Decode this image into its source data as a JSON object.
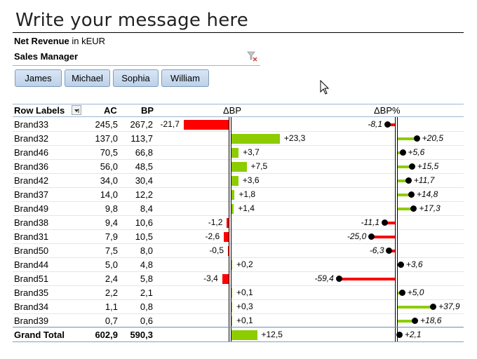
{
  "title": "Write your message here",
  "subtitle": {
    "bold": "Net Revenue",
    "rest": " in kEUR"
  },
  "slicer": {
    "header": "Sales Manager",
    "clear_filter_icon": "clear-filter-icon",
    "buttons": [
      "James",
      "Michael",
      "Sophia",
      "William"
    ]
  },
  "table": {
    "headers": {
      "row_labels": "Row Labels",
      "ac": "AC",
      "bp": "BP",
      "dbp": "ΔBP",
      "dbp_pct": "ΔBP%"
    },
    "rows": [
      {
        "label": "Brand33",
        "ac": "245,5",
        "bp": "267,2",
        "dbp": -21.7,
        "dbp_text": "-21,7",
        "pct": -8.1,
        "pct_text": "-8,1"
      },
      {
        "label": "Brand32",
        "ac": "137,0",
        "bp": "113,7",
        "dbp": 23.3,
        "dbp_text": "+23,3",
        "pct": 20.5,
        "pct_text": "+20,5"
      },
      {
        "label": "Brand46",
        "ac": "70,5",
        "bp": "66,8",
        "dbp": 3.7,
        "dbp_text": "+3,7",
        "pct": 5.6,
        "pct_text": "+5,6"
      },
      {
        "label": "Brand36",
        "ac": "56,0",
        "bp": "48,5",
        "dbp": 7.5,
        "dbp_text": "+7,5",
        "pct": 15.5,
        "pct_text": "+15,5"
      },
      {
        "label": "Brand42",
        "ac": "34,0",
        "bp": "30,4",
        "dbp": 3.6,
        "dbp_text": "+3,6",
        "pct": 11.7,
        "pct_text": "+11,7"
      },
      {
        "label": "Brand37",
        "ac": "14,0",
        "bp": "12,2",
        "dbp": 1.8,
        "dbp_text": "+1,8",
        "pct": 14.8,
        "pct_text": "+14,8"
      },
      {
        "label": "Brand49",
        "ac": "9,8",
        "bp": "8,4",
        "dbp": 1.4,
        "dbp_text": "+1,4",
        "pct": 17.3,
        "pct_text": "+17,3"
      },
      {
        "label": "Brand38",
        "ac": "9,4",
        "bp": "10,6",
        "dbp": -1.2,
        "dbp_text": "-1,2",
        "pct": -11.1,
        "pct_text": "-11,1"
      },
      {
        "label": "Brand31",
        "ac": "7,9",
        "bp": "10,5",
        "dbp": -2.6,
        "dbp_text": "-2,6",
        "pct": -25.0,
        "pct_text": "-25,0"
      },
      {
        "label": "Brand50",
        "ac": "7,5",
        "bp": "8,0",
        "dbp": -0.5,
        "dbp_text": "-0,5",
        "pct": -6.3,
        "pct_text": "-6,3"
      },
      {
        "label": "Brand44",
        "ac": "5,0",
        "bp": "4,8",
        "dbp": 0.2,
        "dbp_text": "+0,2",
        "pct": 3.6,
        "pct_text": "+3,6"
      },
      {
        "label": "Brand51",
        "ac": "2,4",
        "bp": "5,8",
        "dbp": -3.4,
        "dbp_text": "-3,4",
        "pct": -59.4,
        "pct_text": "-59,4"
      },
      {
        "label": "Brand35",
        "ac": "2,2",
        "bp": "2,1",
        "dbp": 0.1,
        "dbp_text": "+0,1",
        "pct": 5.0,
        "pct_text": "+5,0"
      },
      {
        "label": "Brand34",
        "ac": "1,1",
        "bp": "0,8",
        "dbp": 0.3,
        "dbp_text": "+0,3",
        "pct": 37.9,
        "pct_text": "+37,9"
      },
      {
        "label": "Brand39",
        "ac": "0,7",
        "bp": "0,6",
        "dbp": 0.1,
        "dbp_text": "+0,1",
        "pct": 18.6,
        "pct_text": "+18,6"
      }
    ],
    "total": {
      "label": "Grand Total",
      "ac": "602,9",
      "bp": "590,3",
      "dbp": 12.5,
      "dbp_text": "+12,5",
      "pct": 2.1,
      "pct_text": "+2,1"
    }
  },
  "colors": {
    "positive": "#8ccc00",
    "negative": "#ff0000"
  }
}
